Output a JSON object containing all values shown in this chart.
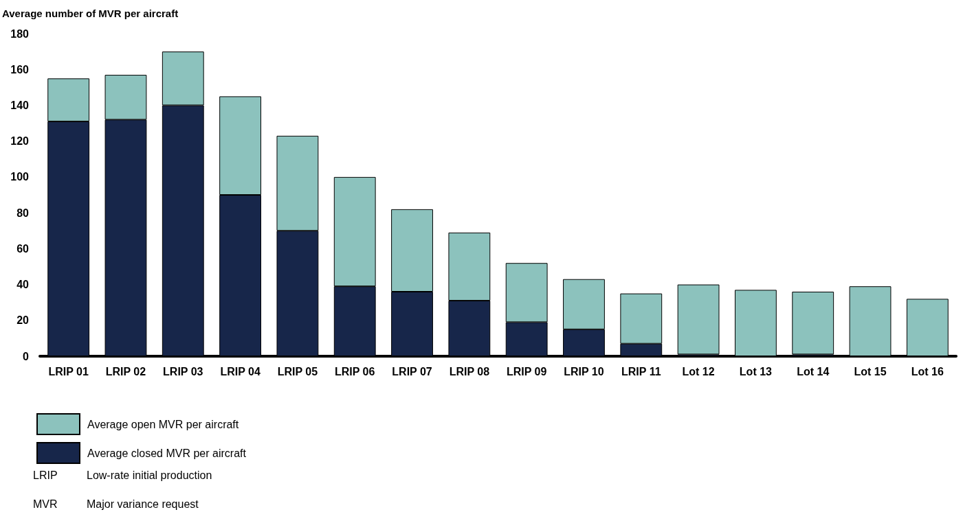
{
  "chart_data": {
    "type": "bar",
    "ylabel": "Average number of MVR per aircraft",
    "categories": [
      "LRIP 01",
      "LRIP 02",
      "LRIP 03",
      "LRIP 04",
      "LRIP 05",
      "LRIP 06",
      "LRIP 07",
      "LRIP 08",
      "LRIP 09",
      "LRIP 10",
      "LRIP 11",
      "Lot 12",
      "Lot 13",
      "Lot 14",
      "Lot 15",
      "Lot 16"
    ],
    "stacked": true,
    "series": [
      {
        "name": "Average closed MVR per aircraft",
        "color": "#17264a",
        "values": [
          131,
          132,
          140,
          90,
          70,
          39,
          36,
          31,
          19,
          15,
          7,
          1,
          0,
          1,
          0,
          0
        ]
      },
      {
        "name": "Average open MVR per aircraft",
        "color": "#8cc2bd",
        "values": [
          24,
          25,
          30,
          55,
          53,
          61,
          46,
          38,
          33,
          28,
          28,
          39,
          37,
          35,
          39,
          32
        ]
      }
    ],
    "ylim": [
      0,
      180
    ],
    "yticks": [
      0,
      20,
      40,
      60,
      80,
      100,
      120,
      140,
      160,
      180
    ],
    "grid": false,
    "legend": "bottom left",
    "annotations": [
      "LRIP",
      "Low-rate initial production",
      "MVR",
      "Major variance request"
    ]
  }
}
